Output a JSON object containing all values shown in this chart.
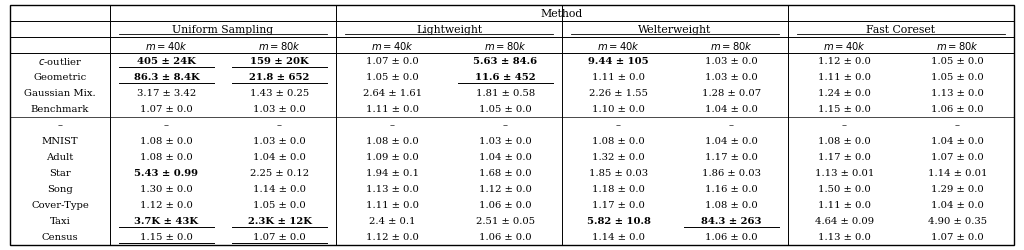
{
  "title": "Method",
  "col_groups": [
    "Uniform Sampling",
    "Lightweight",
    "Welterweight",
    "Fast Coreset"
  ],
  "col_subheaders": [
    "$m=40k$",
    "$m=80k$",
    "$m=40k$",
    "$m=80k$",
    "$m=40k$",
    "$m=80k$",
    "$m=40k$",
    "$m=80k$"
  ],
  "row_labels": [
    "$c$-outlier",
    "Geometric",
    "Gaussian Mix.",
    "Benchmark",
    "–",
    "MNIST",
    "Adult",
    "Star",
    "Song",
    "Cover-Type",
    "Taxi",
    "Census"
  ],
  "cells": [
    [
      "405 ± 24K",
      "159 ± 20K",
      "1.07 ± 0.0",
      "5.63 ± 84.6",
      "9.44 ± 105",
      "1.03 ± 0.0",
      "1.12 ± 0.0",
      "1.05 ± 0.0"
    ],
    [
      "86.3 ± 8.4K",
      "21.8 ± 652",
      "1.05 ± 0.0",
      "11.6 ± 452",
      "1.11 ± 0.0",
      "1.03 ± 0.0",
      "1.11 ± 0.0",
      "1.05 ± 0.0"
    ],
    [
      "3.17 ± 3.42",
      "1.43 ± 0.25",
      "2.64 ± 1.61",
      "1.81 ± 0.58",
      "2.26 ± 1.55",
      "1.28 ± 0.07",
      "1.24 ± 0.0",
      "1.13 ± 0.0"
    ],
    [
      "1.07 ± 0.0",
      "1.03 ± 0.0",
      "1.11 ± 0.0",
      "1.05 ± 0.0",
      "1.10 ± 0.0",
      "1.04 ± 0.0",
      "1.15 ± 0.0",
      "1.06 ± 0.0"
    ],
    [
      "–",
      "–",
      "–",
      "–",
      "–",
      "–",
      "–",
      "–"
    ],
    [
      "1.08 ± 0.0",
      "1.03 ± 0.0",
      "1.08 ± 0.0",
      "1.03 ± 0.0",
      "1.08 ± 0.0",
      "1.04 ± 0.0",
      "1.08 ± 0.0",
      "1.04 ± 0.0"
    ],
    [
      "1.08 ± 0.0",
      "1.04 ± 0.0",
      "1.09 ± 0.0",
      "1.04 ± 0.0",
      "1.32 ± 0.0",
      "1.17 ± 0.0",
      "1.17 ± 0.0",
      "1.07 ± 0.0"
    ],
    [
      "5.43 ± 0.99",
      "2.25 ± 0.12",
      "1.94 ± 0.1",
      "1.68 ± 0.0",
      "1.85 ± 0.03",
      "1.86 ± 0.03",
      "1.13 ± 0.01",
      "1.14 ± 0.01"
    ],
    [
      "1.30 ± 0.0",
      "1.14 ± 0.0",
      "1.13 ± 0.0",
      "1.12 ± 0.0",
      "1.18 ± 0.0",
      "1.16 ± 0.0",
      "1.50 ± 0.0",
      "1.29 ± 0.0"
    ],
    [
      "1.12 ± 0.0",
      "1.05 ± 0.0",
      "1.11 ± 0.0",
      "1.06 ± 0.0",
      "1.17 ± 0.0",
      "1.08 ± 0.0",
      "1.11 ± 0.0",
      "1.04 ± 0.0"
    ],
    [
      "3.7K ± 43K",
      "2.3K ± 12K",
      "2.4 ± 0.1",
      "2.51 ± 0.05",
      "5.82 ± 10.8",
      "84.3 ± 263",
      "4.64 ± 0.09",
      "4.90 ± 0.35"
    ],
    [
      "1.15 ± 0.0",
      "1.07 ± 0.0",
      "1.12 ± 0.0",
      "1.06 ± 0.0",
      "1.14 ± 0.0",
      "1.06 ± 0.0",
      "1.13 ± 0.0",
      "1.07 ± 0.0"
    ]
  ],
  "bold": [
    [
      true,
      true,
      false,
      true,
      true,
      false,
      false,
      false
    ],
    [
      true,
      true,
      false,
      true,
      false,
      false,
      false,
      false
    ],
    [
      false,
      false,
      false,
      false,
      false,
      false,
      false,
      false
    ],
    [
      false,
      false,
      false,
      false,
      false,
      false,
      false,
      false
    ],
    [
      false,
      false,
      false,
      false,
      false,
      false,
      false,
      false
    ],
    [
      false,
      false,
      false,
      false,
      false,
      false,
      false,
      false
    ],
    [
      false,
      false,
      false,
      false,
      false,
      false,
      false,
      false
    ],
    [
      true,
      false,
      false,
      false,
      false,
      false,
      false,
      false
    ],
    [
      false,
      false,
      false,
      false,
      false,
      false,
      false,
      false
    ],
    [
      false,
      false,
      false,
      false,
      false,
      false,
      false,
      false
    ],
    [
      true,
      true,
      false,
      false,
      true,
      true,
      false,
      false
    ],
    [
      false,
      false,
      false,
      false,
      false,
      false,
      false,
      false
    ]
  ],
  "underline": [
    [
      true,
      true,
      false,
      false,
      false,
      false,
      false,
      false
    ],
    [
      true,
      true,
      false,
      true,
      false,
      false,
      false,
      false
    ],
    [
      false,
      false,
      false,
      false,
      false,
      false,
      false,
      false
    ],
    [
      false,
      false,
      false,
      false,
      false,
      false,
      false,
      false
    ],
    [
      false,
      false,
      false,
      false,
      false,
      false,
      false,
      false
    ],
    [
      false,
      false,
      false,
      false,
      false,
      false,
      false,
      false
    ],
    [
      false,
      false,
      false,
      false,
      false,
      false,
      false,
      false
    ],
    [
      false,
      false,
      false,
      false,
      false,
      false,
      false,
      false
    ],
    [
      false,
      false,
      false,
      false,
      false,
      false,
      false,
      false
    ],
    [
      false,
      false,
      false,
      false,
      false,
      false,
      false,
      false
    ],
    [
      true,
      true,
      false,
      false,
      false,
      true,
      false,
      false
    ],
    [
      true,
      true,
      false,
      false,
      false,
      false,
      false,
      false
    ]
  ],
  "bg_color": "#ffffff",
  "font_size": 7.2,
  "header_font_size": 7.8,
  "fig_width": 10.24,
  "fig_height": 2.51,
  "dpi": 100
}
